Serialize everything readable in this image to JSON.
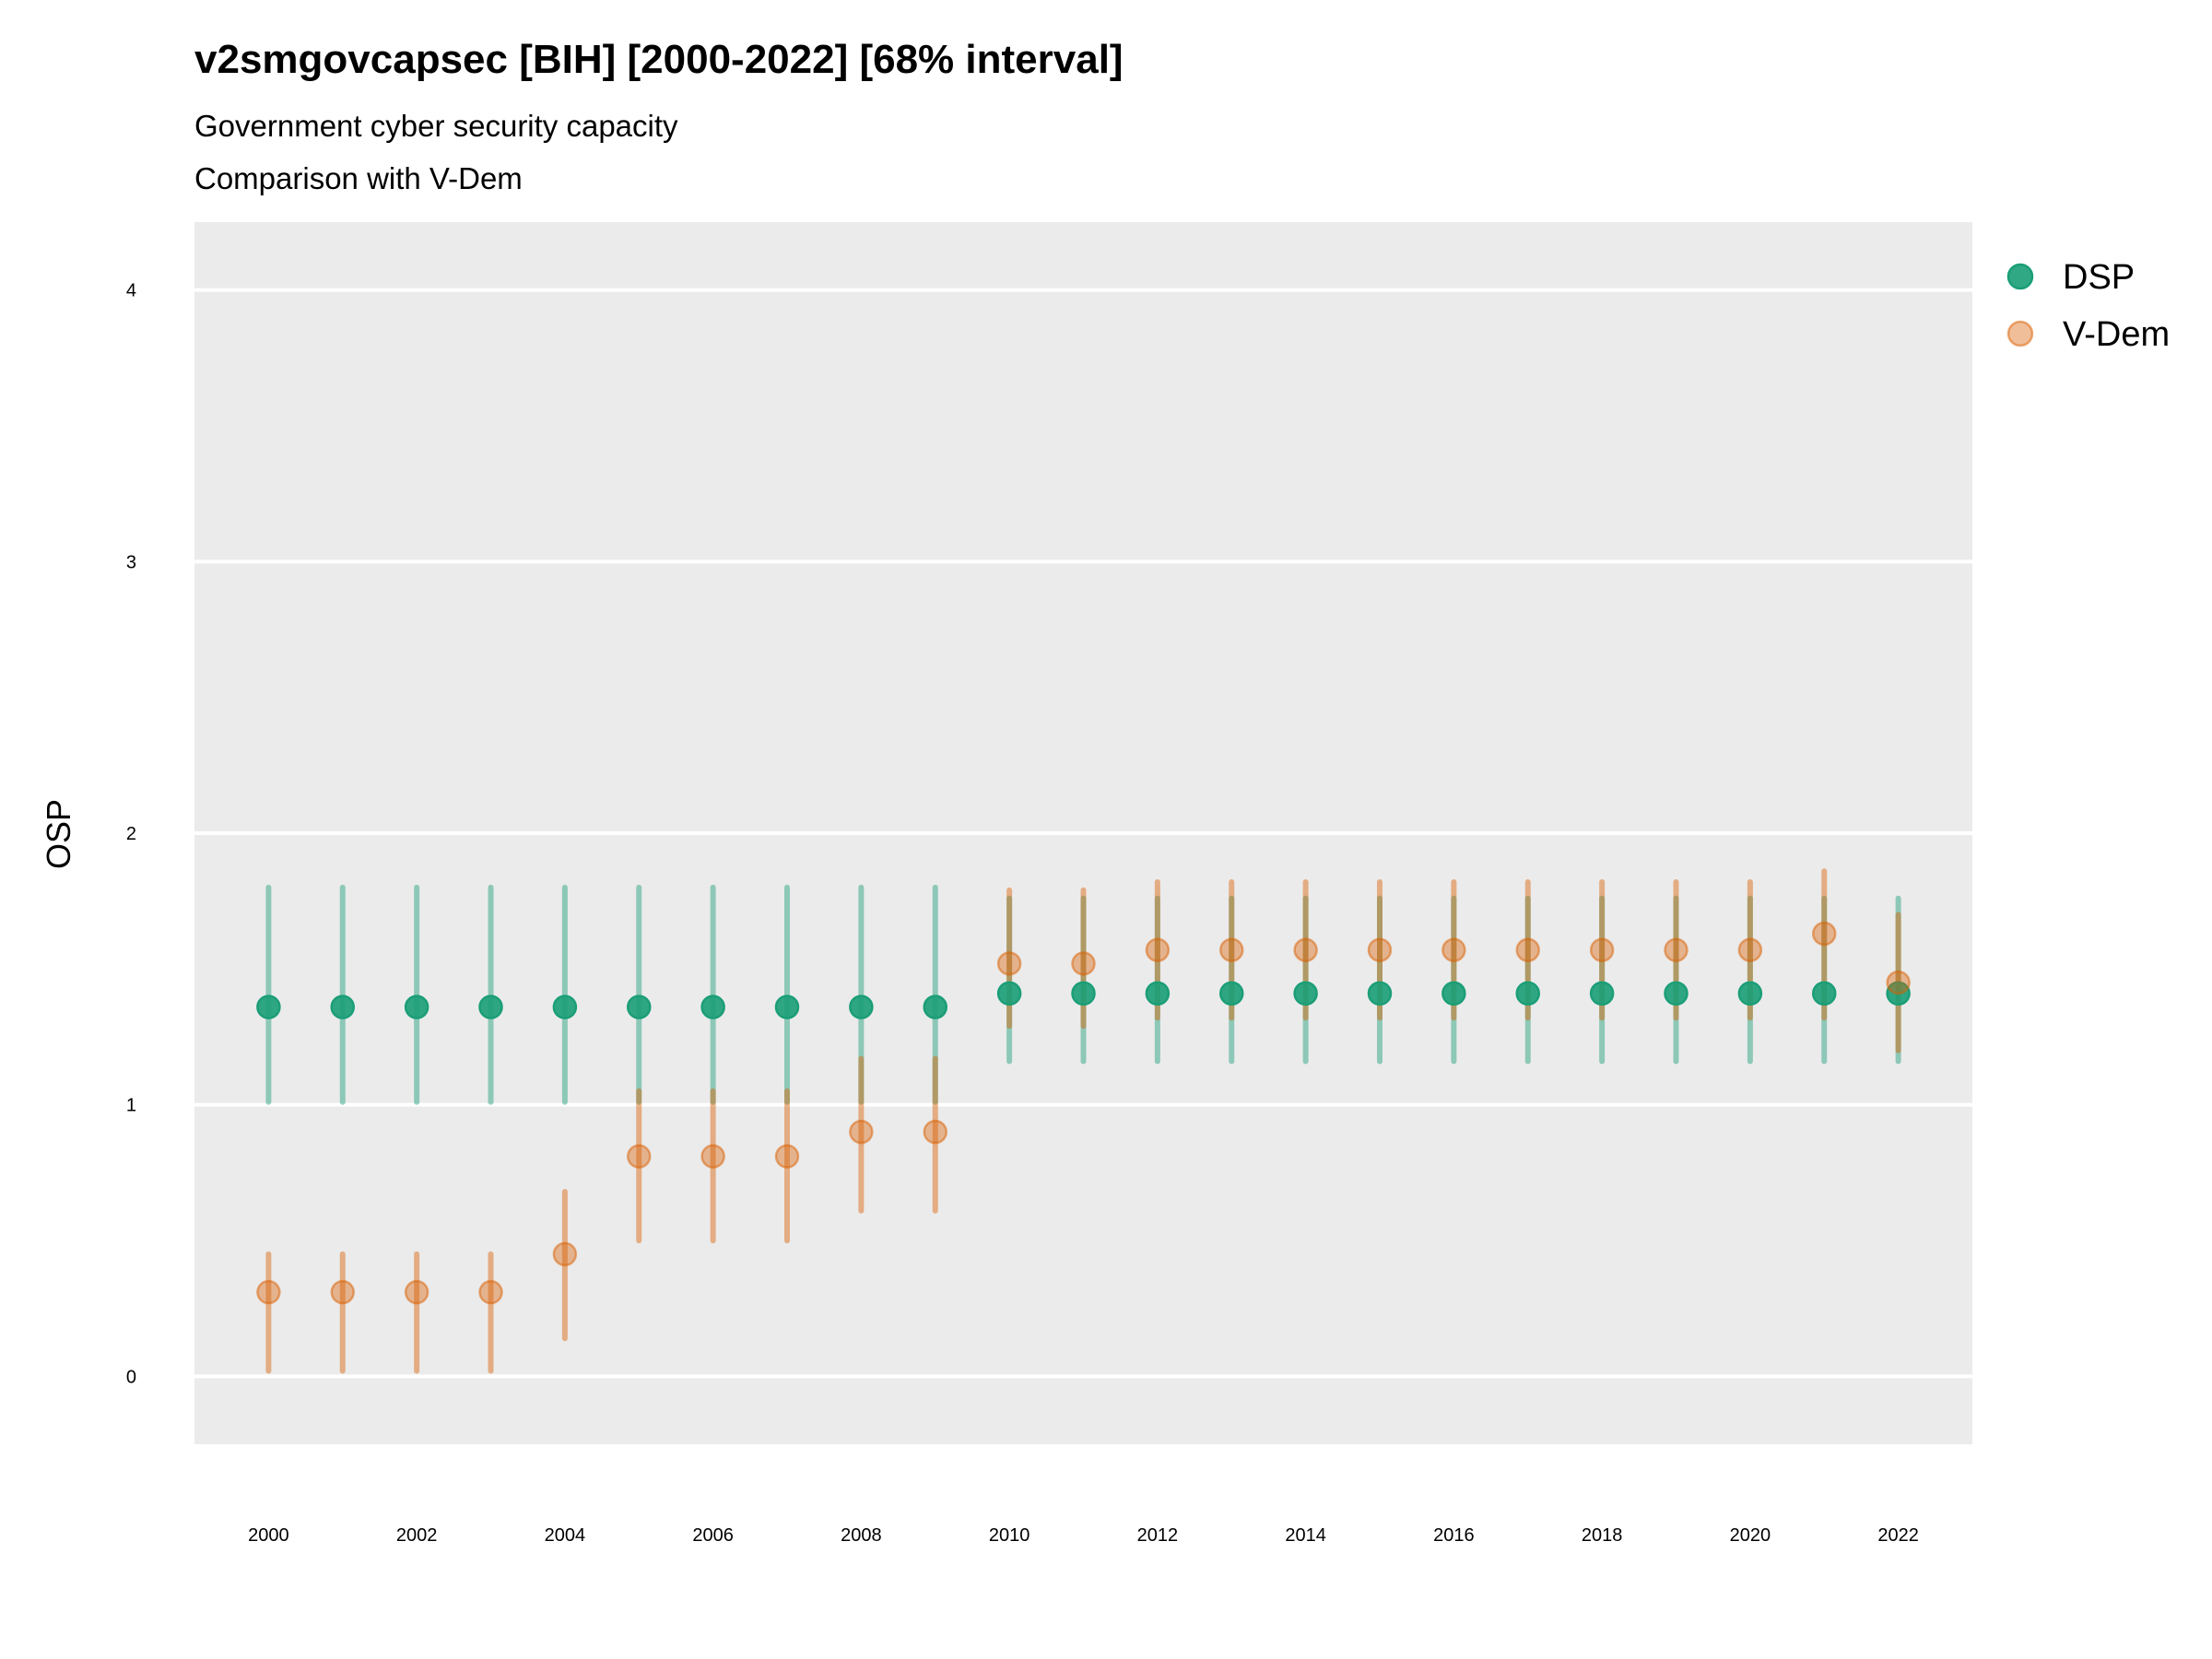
{
  "chart_data": {
    "type": "scatter",
    "title": "v2smgovcapsec [BIH] [2000-2022] [68% interval]",
    "subtitle": "Government cyber security capacity",
    "subtitle2": "Comparison with V-Dem",
    "xlabel": "",
    "ylabel": "OSP",
    "xlim": [
      1999,
      2023
    ],
    "ylim": [
      -0.25,
      4.25
    ],
    "yticks": [
      0,
      1,
      2,
      3,
      4
    ],
    "xticks": [
      2000,
      2002,
      2004,
      2006,
      2008,
      2010,
      2012,
      2014,
      2016,
      2018,
      2020,
      2022
    ],
    "grid": true,
    "legend_position": "right",
    "x": [
      2000,
      2001,
      2002,
      2003,
      2004,
      2005,
      2006,
      2007,
      2008,
      2009,
      2010,
      2011,
      2012,
      2013,
      2014,
      2015,
      2016,
      2017,
      2018,
      2019,
      2020,
      2021,
      2022
    ],
    "series": [
      {
        "name": "DSP",
        "color": "#1b9e77",
        "values": [
          1.36,
          1.36,
          1.36,
          1.36,
          1.36,
          1.36,
          1.36,
          1.36,
          1.36,
          1.36,
          1.41,
          1.41,
          1.41,
          1.41,
          1.41,
          1.41,
          1.41,
          1.41,
          1.41,
          1.41,
          1.41,
          1.41,
          1.41
        ],
        "lower": [
          1.01,
          1.01,
          1.01,
          1.01,
          1.01,
          1.01,
          1.01,
          1.01,
          1.01,
          1.01,
          1.16,
          1.16,
          1.16,
          1.16,
          1.16,
          1.16,
          1.16,
          1.16,
          1.16,
          1.16,
          1.16,
          1.16,
          1.16
        ],
        "upper": [
          1.8,
          1.8,
          1.8,
          1.8,
          1.8,
          1.8,
          1.8,
          1.8,
          1.8,
          1.8,
          1.76,
          1.76,
          1.76,
          1.76,
          1.76,
          1.76,
          1.76,
          1.76,
          1.76,
          1.76,
          1.76,
          1.76,
          1.76
        ]
      },
      {
        "name": "V-Dem",
        "color": "#d95f02",
        "values": [
          0.31,
          0.31,
          0.31,
          0.31,
          0.45,
          0.81,
          0.81,
          0.81,
          0.9,
          0.9,
          1.52,
          1.52,
          1.57,
          1.57,
          1.57,
          1.57,
          1.57,
          1.57,
          1.57,
          1.57,
          1.57,
          1.63,
          1.45
        ],
        "lower": [
          0.02,
          0.02,
          0.02,
          0.02,
          0.14,
          0.5,
          0.5,
          0.5,
          0.61,
          0.61,
          1.29,
          1.29,
          1.32,
          1.32,
          1.32,
          1.32,
          1.32,
          1.32,
          1.32,
          1.32,
          1.32,
          1.32,
          1.2
        ],
        "upper": [
          0.45,
          0.45,
          0.45,
          0.45,
          0.68,
          1.05,
          1.05,
          1.05,
          1.17,
          1.17,
          1.79,
          1.79,
          1.82,
          1.82,
          1.82,
          1.82,
          1.82,
          1.82,
          1.82,
          1.82,
          1.82,
          1.86,
          1.7
        ]
      }
    ]
  }
}
